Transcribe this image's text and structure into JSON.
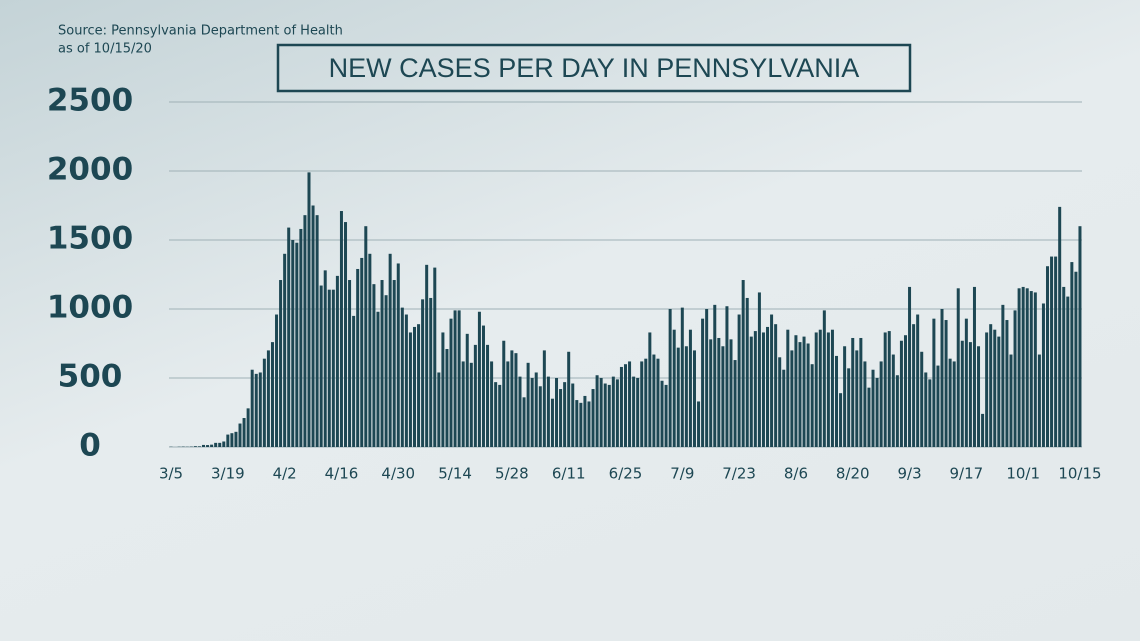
{
  "chart_data": {
    "type": "bar",
    "source": "Source: Pennsylvania Department of Health",
    "as_of": "as of 10/15/20",
    "title": "NEW CASES PER DAY IN PENNSYLVANIA",
    "color": "#1d4753",
    "ylim": [
      0,
      2500
    ],
    "yticks": [
      0,
      500,
      1000,
      1500,
      2000,
      2500
    ],
    "grid": true,
    "categories": [
      "3/5",
      null,
      null,
      null,
      null,
      null,
      null,
      null,
      null,
      null,
      null,
      null,
      null,
      null,
      "3/19",
      null,
      null,
      null,
      null,
      null,
      null,
      null,
      null,
      null,
      null,
      null,
      null,
      null,
      "4/2",
      null,
      null,
      null,
      null,
      null,
      null,
      null,
      null,
      null,
      null,
      null,
      null,
      null,
      "4/16",
      null,
      null,
      null,
      null,
      null,
      null,
      null,
      null,
      null,
      null,
      null,
      null,
      null,
      "4/30",
      null,
      null,
      null,
      null,
      null,
      null,
      null,
      null,
      null,
      null,
      null,
      null,
      null,
      "5/14",
      null,
      null,
      null,
      null,
      null,
      null,
      null,
      null,
      null,
      null,
      null,
      null,
      null,
      "5/28",
      null,
      null,
      null,
      null,
      null,
      null,
      null,
      null,
      null,
      null,
      null,
      null,
      null,
      "6/11",
      null,
      null,
      null,
      null,
      null,
      null,
      null,
      null,
      null,
      null,
      null,
      null,
      null,
      "6/25",
      null,
      null,
      null,
      null,
      null,
      null,
      null,
      null,
      null,
      null,
      null,
      null,
      null,
      "7/9",
      null,
      null,
      null,
      null,
      null,
      null,
      null,
      null,
      null,
      null,
      null,
      null,
      null,
      "7/23",
      null,
      null,
      null,
      null,
      null,
      null,
      null,
      null,
      null,
      null,
      null,
      null,
      null,
      "8/6",
      null,
      null,
      null,
      null,
      null,
      null,
      null,
      null,
      null,
      null,
      null,
      null,
      null,
      "8/20",
      null,
      null,
      null,
      null,
      null,
      null,
      null,
      null,
      null,
      null,
      null,
      null,
      null,
      "9/3",
      null,
      null,
      null,
      null,
      null,
      null,
      null,
      null,
      null,
      null,
      null,
      null,
      null,
      "9/17",
      null,
      null,
      null,
      null,
      null,
      null,
      null,
      null,
      null,
      null,
      null,
      null,
      null,
      "10/1",
      null,
      null,
      null,
      null,
      null,
      null,
      null,
      null,
      null,
      null,
      null,
      null,
      null,
      "10/15"
    ],
    "values": [
      2,
      0,
      2,
      3,
      2,
      3,
      6,
      5,
      15,
      14,
      17,
      30,
      30,
      40,
      90,
      100,
      110,
      170,
      210,
      280,
      560,
      530,
      540,
      640,
      700,
      760,
      960,
      1210,
      1400,
      1590,
      1500,
      1480,
      1580,
      1680,
      1990,
      1750,
      1680,
      1170,
      1280,
      1140,
      1140,
      1240,
      1710,
      1630,
      1210,
      950,
      1290,
      1370,
      1600,
      1400,
      1180,
      980,
      1210,
      1100,
      1400,
      1210,
      1330,
      1010,
      960,
      830,
      870,
      890,
      1070,
      1320,
      1080,
      1300,
      540,
      830,
      710,
      930,
      990,
      990,
      620,
      820,
      610,
      740,
      980,
      880,
      740,
      620,
      470,
      450,
      770,
      620,
      700,
      680,
      510,
      360,
      610,
      500,
      540,
      440,
      700,
      510,
      350,
      500,
      420,
      470,
      690,
      460,
      340,
      320,
      370,
      330,
      420,
      520,
      500,
      460,
      450,
      510,
      490,
      580,
      600,
      620,
      510,
      500,
      620,
      640,
      830,
      670,
      640,
      480,
      450,
      1000,
      850,
      720,
      1010,
      730,
      850,
      700,
      330,
      930,
      1000,
      780,
      1030,
      790,
      730,
      1020,
      780,
      630,
      960,
      1210,
      1080,
      800,
      840,
      1120,
      830,
      870,
      960,
      890,
      650,
      560,
      850,
      700,
      810,
      760,
      800,
      750,
      600,
      830,
      850,
      990,
      830,
      850,
      660,
      390,
      730,
      570,
      790,
      700,
      790,
      620,
      430,
      560,
      500,
      620,
      830,
      840,
      670,
      520,
      770,
      810,
      1160,
      890,
      960,
      690,
      540,
      490,
      930,
      590,
      1000,
      920,
      640,
      620,
      1150,
      770,
      930,
      760,
      1160,
      730,
      240,
      830,
      890,
      850,
      800,
      1030,
      920,
      670,
      990,
      1150,
      1160,
      1150,
      1130,
      1120,
      670,
      1040,
      1310,
      1380,
      1380,
      1740,
      1160,
      1090,
      1340,
      1270,
      1600
    ]
  }
}
